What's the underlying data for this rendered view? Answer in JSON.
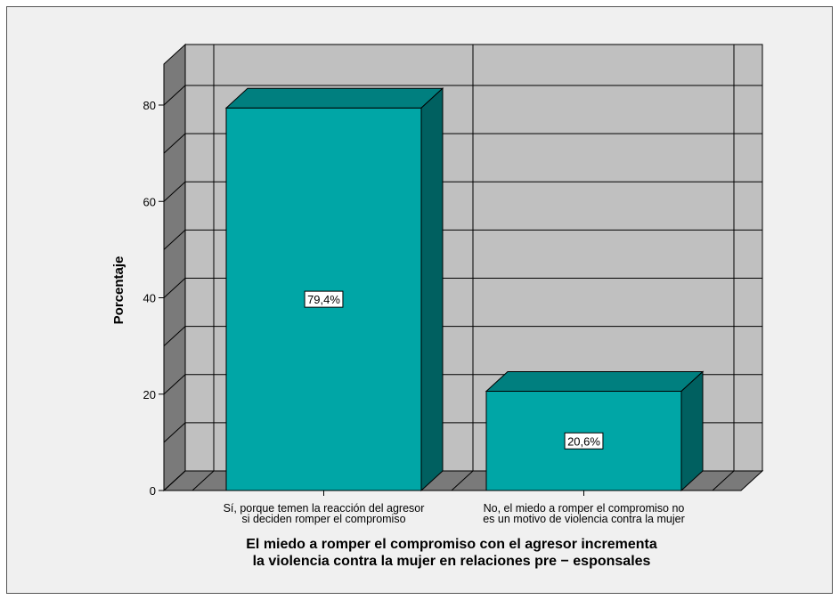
{
  "chart_data": {
    "type": "bar",
    "categories": [
      [
        "Sí, porque temen la reacción del agresor",
        "si deciden romper el compromiso"
      ],
      [
        "No, el miedo a romper el compromiso no",
        "es un motivo de violencia contra la mujer"
      ]
    ],
    "values": [
      79.4,
      20.6
    ],
    "data_labels": [
      "79,4%",
      "20,6%"
    ],
    "ylabel": "Porcentaje",
    "xlabel": [
      "El miedo a romper el compromiso con el agresor incrementa",
      "la violencia contra la mujer en relaciones pre − esponsales"
    ],
    "ylim": [
      0,
      80
    ],
    "yticks": [
      "0",
      "20",
      "40",
      "60",
      "80"
    ],
    "grid": true,
    "three_d": true,
    "colors": {
      "bar_front": "#00a6a6",
      "bar_top": "#007f7f",
      "bar_side": "#006060",
      "wall": "#c0c0c0",
      "floor": "#7a7a7a",
      "frame_background": "#f0f0f0"
    }
  }
}
